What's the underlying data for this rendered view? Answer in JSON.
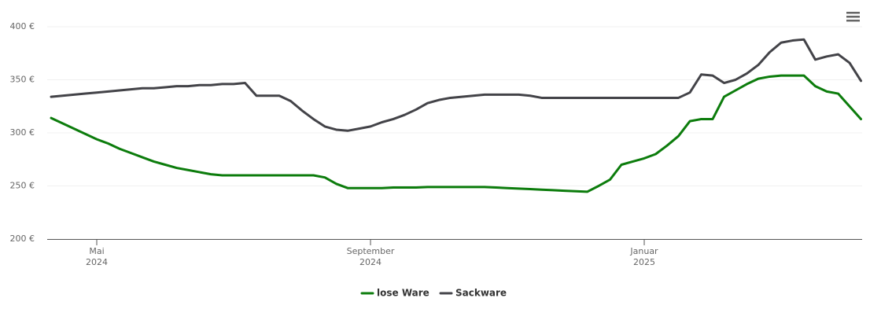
{
  "chart_data": {
    "type": "line",
    "categories": [
      null,
      null,
      null,
      null,
      "Mai\n2024",
      null,
      null,
      null,
      null,
      null,
      null,
      null,
      null,
      null,
      null,
      null,
      null,
      null,
      null,
      null,
      null,
      null,
      null,
      null,
      null,
      null,
      null,
      null,
      "September\n2024",
      null,
      null,
      null,
      null,
      null,
      null,
      null,
      null,
      null,
      null,
      null,
      null,
      null,
      null,
      null,
      null,
      null,
      null,
      null,
      null,
      null,
      null,
      null,
      "Januar\n2025",
      null,
      null,
      null,
      null,
      null,
      null,
      null,
      null,
      null,
      null,
      null,
      null,
      null,
      null,
      null,
      null,
      null,
      null,
      null
    ],
    "series": [
      {
        "name": "lose Ware",
        "color": "#0c7c0c",
        "values": [
          314,
          309,
          304,
          299,
          294,
          290,
          285,
          281,
          277,
          273,
          270,
          267,
          265,
          263,
          261,
          260,
          260,
          260,
          260,
          260,
          260,
          260,
          260,
          260,
          258,
          252,
          248,
          248,
          248,
          248,
          248.5,
          248.5,
          248.5,
          249,
          249,
          249,
          249,
          249,
          249,
          248.5,
          248,
          247.5,
          247,
          246.5,
          246,
          245.5,
          245,
          244.5,
          250,
          256,
          270,
          273,
          276,
          280,
          288,
          297,
          311,
          313,
          313,
          334,
          340,
          346,
          351,
          353,
          354,
          354,
          354,
          344,
          339,
          337,
          325,
          313
        ]
      },
      {
        "name": "Sackware",
        "color": "#434348",
        "values": [
          334,
          335,
          336,
          337,
          338,
          339,
          340,
          341,
          342,
          342,
          343,
          344,
          344,
          345,
          345,
          346,
          346,
          347,
          335,
          335,
          335,
          330,
          321,
          313,
          306,
          303,
          302,
          304,
          306,
          310,
          313,
          317,
          322,
          328,
          331,
          333,
          334,
          335,
          336,
          336,
          336,
          336,
          335,
          333,
          333,
          333,
          333,
          333,
          333,
          333,
          333,
          333,
          333,
          333,
          333,
          333,
          338,
          355,
          354,
          347,
          350,
          356,
          364,
          376,
          385,
          387,
          388,
          369,
          372,
          374,
          366,
          349
        ]
      }
    ],
    "ylim": [
      200,
      400
    ],
    "yticks": [
      {
        "value": 200,
        "label": "200 €"
      },
      {
        "value": 250,
        "label": "250 €"
      },
      {
        "value": 300,
        "label": "300 €"
      },
      {
        "value": 350,
        "label": "350 €"
      },
      {
        "value": 400,
        "label": "400 €"
      }
    ],
    "grid": true
  }
}
